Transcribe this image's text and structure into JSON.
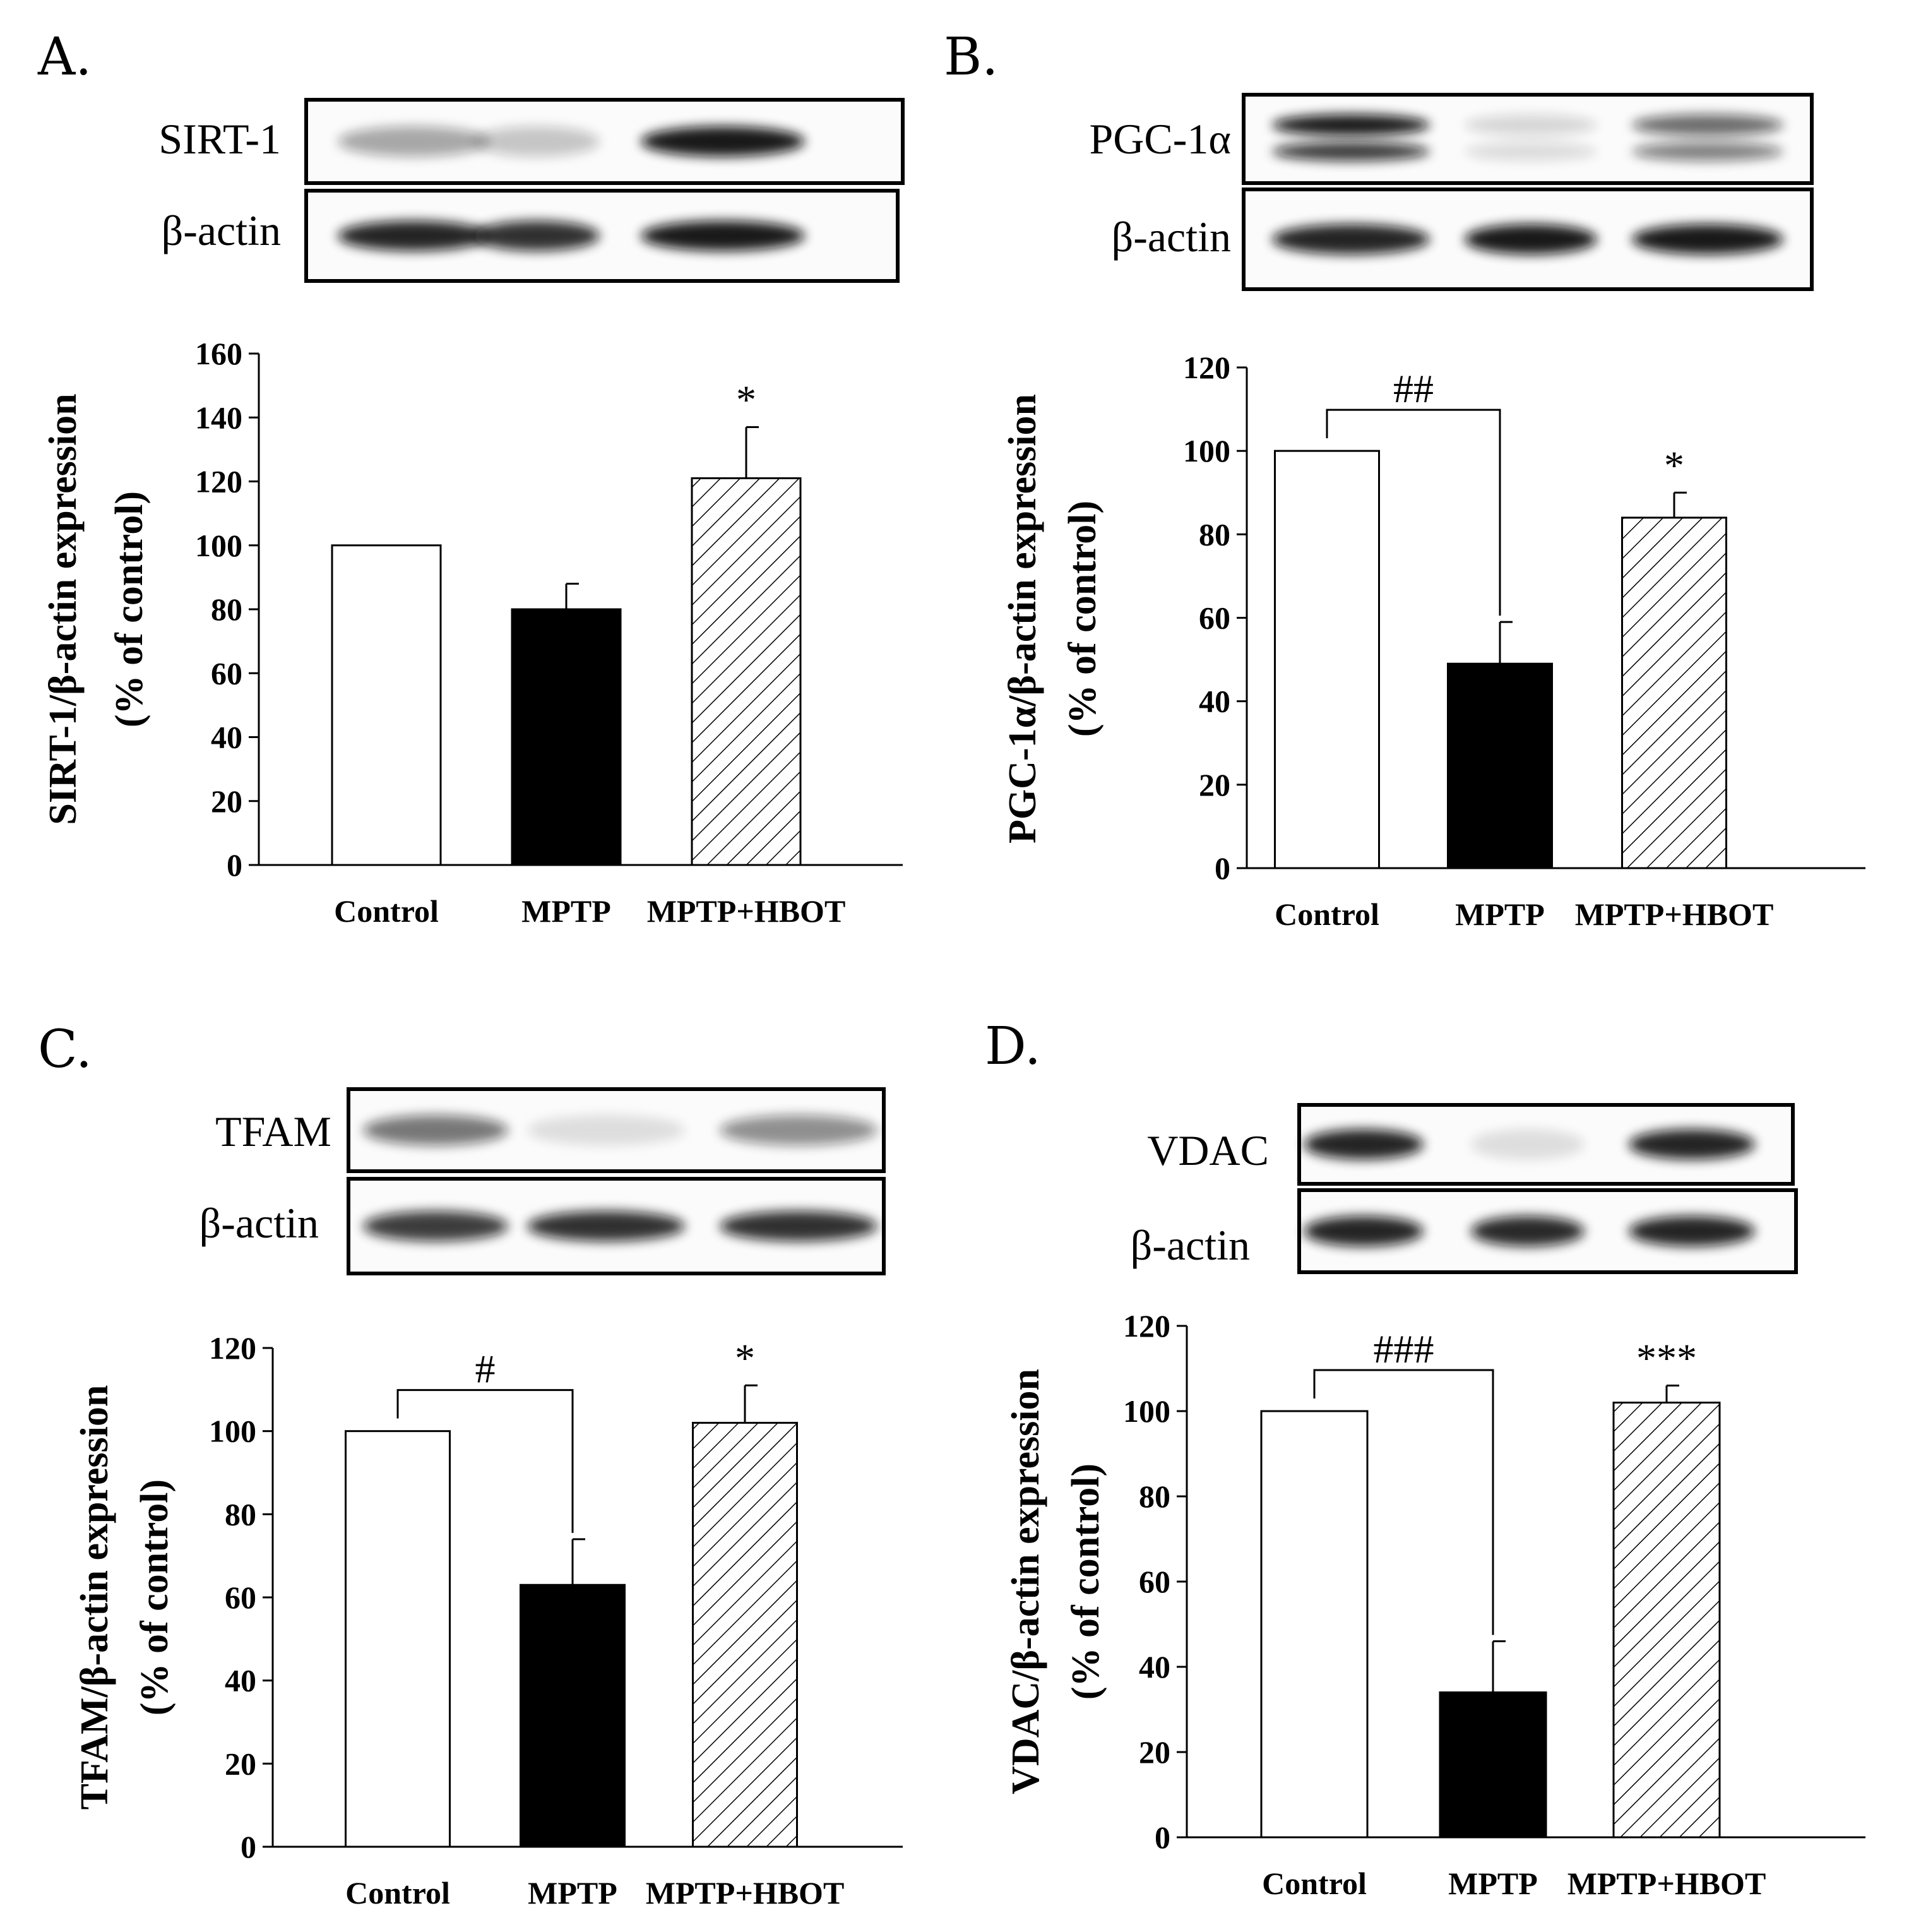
{
  "panels": [
    {
      "letter": "A.",
      "blot": {
        "bands": [
          {
            "label": "SIRT-1",
            "intensities": [
              0.35,
              0.22,
              0.95
            ],
            "double": false
          },
          {
            "label": "β-actin",
            "intensities": [
              0.9,
              0.85,
              0.95
            ],
            "double": false
          }
        ]
      },
      "chart_data": {
        "type": "bar",
        "title": "",
        "ylabel": [
          "SIRT-1/β-actin expression",
          "(% of control)"
        ],
        "xlabel": "",
        "categories": [
          "Control",
          "MPTP",
          "MPTP+HBOT"
        ],
        "values": [
          100,
          80,
          121
        ],
        "errors": [
          0,
          8,
          16
        ],
        "ylim": [
          0,
          160
        ],
        "yticks": [
          "0",
          "20",
          "40",
          "60",
          "80",
          "100",
          "120",
          "140",
          "160"
        ],
        "significance": {
          "bracket": null,
          "bracket_label": "",
          "bar_labels": [
            "",
            "",
            "*"
          ]
        }
      }
    },
    {
      "letter": "B.",
      "blot": {
        "bands": [
          {
            "label": "PGC-1α",
            "intensities": [
              0.95,
              0.15,
              0.6
            ],
            "double": true
          },
          {
            "label": "β-actin",
            "intensities": [
              0.9,
              0.95,
              0.95
            ],
            "double": false
          }
        ]
      },
      "chart_data": {
        "type": "bar",
        "title": "",
        "ylabel": [
          "PGC-1α/β-actin expression",
          "(% of control)"
        ],
        "xlabel": "",
        "categories": [
          "Control",
          "MPTP",
          "MPTP+HBOT"
        ],
        "values": [
          100,
          49,
          84
        ],
        "errors": [
          0,
          10,
          6
        ],
        "ylim": [
          0,
          120
        ],
        "yticks": [
          "0",
          "20",
          "40",
          "60",
          "80",
          "100",
          "120"
        ],
        "significance": {
          "bracket": [
            0,
            1
          ],
          "bracket_label": "##",
          "bar_labels": [
            "",
            "",
            "*"
          ]
        }
      }
    },
    {
      "letter": "C.",
      "blot": {
        "bands": [
          {
            "label": "TFAM",
            "intensities": [
              0.55,
              0.12,
              0.45
            ],
            "double": false
          },
          {
            "label": "β-actin",
            "intensities": [
              0.8,
              0.85,
              0.85
            ],
            "double": false
          }
        ]
      },
      "chart_data": {
        "type": "bar",
        "title": "",
        "ylabel": [
          "TFAM/β-actin expression",
          "(% of control)"
        ],
        "xlabel": "",
        "categories": [
          "Control",
          "MPTP",
          "MPTP+HBOT"
        ],
        "values": [
          100,
          63,
          102
        ],
        "errors": [
          0,
          11,
          9
        ],
        "ylim": [
          0,
          120
        ],
        "yticks": [
          "0",
          "20",
          "40",
          "60",
          "80",
          "100",
          "120"
        ],
        "significance": {
          "bracket": [
            0,
            1
          ],
          "bracket_label": "#",
          "bar_labels": [
            "",
            "",
            "*"
          ]
        }
      }
    },
    {
      "letter": "D.",
      "blot": {
        "bands": [
          {
            "label": "VDAC",
            "intensities": [
              0.9,
              0.12,
              0.9
            ],
            "double": false
          },
          {
            "label": "β-actin",
            "intensities": [
              0.9,
              0.88,
              0.9
            ],
            "double": false
          }
        ]
      },
      "chart_data": {
        "type": "bar",
        "title": "",
        "ylabel": [
          "VDAC/β-actin expression",
          "(% of control)"
        ],
        "xlabel": "",
        "categories": [
          "Control",
          "MPTP",
          "MPTP+HBOT"
        ],
        "values": [
          100,
          34,
          102
        ],
        "errors": [
          0,
          12,
          4
        ],
        "ylim": [
          0,
          120
        ],
        "yticks": [
          "0",
          "20",
          "40",
          "60",
          "80",
          "100",
          "120"
        ],
        "significance": {
          "bracket": [
            0,
            1
          ],
          "bracket_label": "###",
          "bar_labels": [
            "",
            "",
            "***"
          ]
        }
      }
    }
  ],
  "style": {
    "bar_fills": [
      "#ffffff",
      "#000000",
      "hatched"
    ],
    "blot_band_color": "#111111"
  }
}
